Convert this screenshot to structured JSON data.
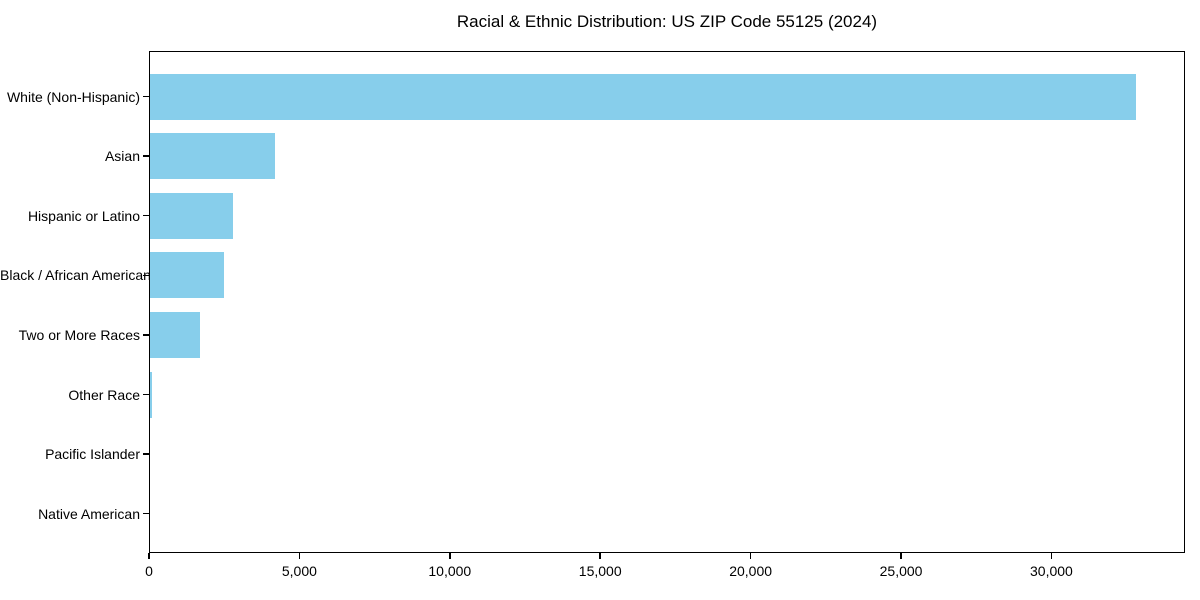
{
  "figure": {
    "title": "Racial & Ethnic Distribution: US ZIP Code 55125 (2024)"
  },
  "chart_data": {
    "type": "bar",
    "orientation": "horizontal",
    "title": "Racial & Ethnic Distribution: US ZIP Code 55125 (2024)",
    "categories": [
      "White (Non-Hispanic)",
      "Asian",
      "Hispanic or Latino",
      "Black / African American",
      "Two or More Races",
      "Other Race",
      "Pacific Islander",
      "Native American"
    ],
    "values": [
      32800,
      4200,
      2800,
      2500,
      1700,
      85,
      0,
      0
    ],
    "xlabel": "",
    "ylabel": "",
    "xlim": [
      0,
      34440
    ],
    "xticks": [
      0,
      5000,
      10000,
      15000,
      20000,
      25000,
      30000
    ],
    "xtick_labels": [
      "0",
      "5,000",
      "10,000",
      "15,000",
      "20,000",
      "25,000",
      "30,000"
    ],
    "bar_color": "#87CEEB",
    "axis_color": "#000000",
    "background_color": "#ffffff",
    "grid": false,
    "legend": false
  }
}
